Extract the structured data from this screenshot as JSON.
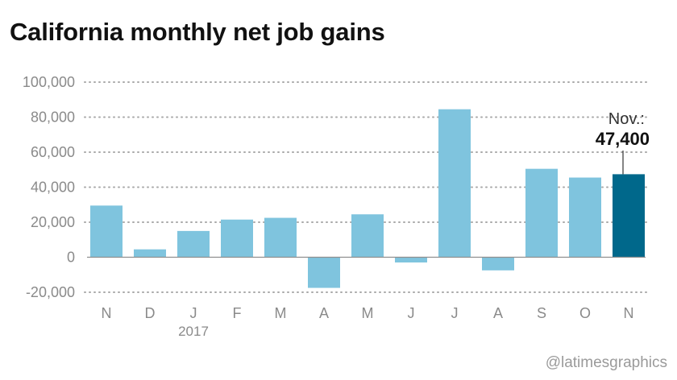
{
  "title": "California monthly net job gains",
  "credit": "@latimesgraphics",
  "colors": {
    "bar": "#7fc4de",
    "highlight": "#00688b"
  },
  "chart_data": {
    "type": "bar",
    "title": "California monthly net job gains",
    "categories": [
      "N",
      "D",
      "J",
      "F",
      "M",
      "A",
      "M",
      "J",
      "J",
      "A",
      "S",
      "O",
      "N"
    ],
    "year_label": "2017",
    "values": [
      29500,
      4500,
      15000,
      21500,
      22500,
      -17500,
      24500,
      -3000,
      84500,
      -7500,
      50500,
      45500,
      47400
    ],
    "highlight_index": 12,
    "annotation": {
      "line1": "Nov.:",
      "line2": "47,400"
    },
    "yticks": [
      100000,
      80000,
      60000,
      40000,
      20000,
      0,
      -20000
    ],
    "ytick_labels": [
      "100,000",
      "80,000",
      "60,000",
      "40,000",
      "20,000",
      "0",
      "-20,000"
    ],
    "ylim": [
      -20000,
      100000
    ],
    "grid": true
  }
}
